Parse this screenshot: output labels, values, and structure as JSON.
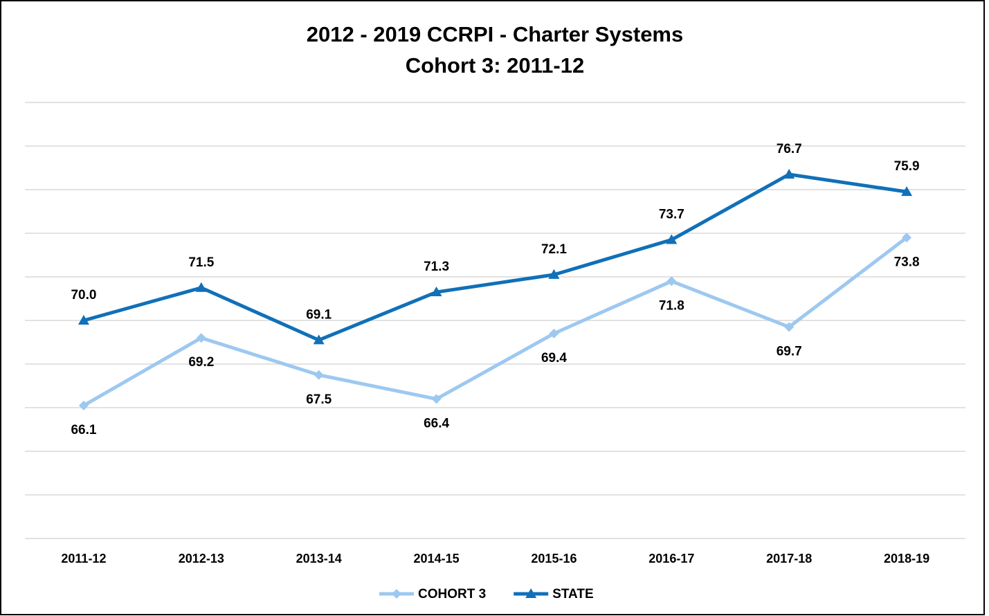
{
  "chart_data": {
    "type": "line",
    "title": "2012 - 2019 CCRPI - Charter Systems",
    "subtitle": "Cohort 3: 2011-12",
    "categories": [
      "2011-12",
      "2012-13",
      "2013-14",
      "2014-15",
      "2015-16",
      "2016-17",
      "2017-18",
      "2018-19"
    ],
    "series": [
      {
        "name": "COHORT 3",
        "color": "#9dc8f0",
        "marker": "diamond",
        "label_position": "below",
        "values": [
          66.1,
          69.2,
          67.5,
          66.4,
          69.4,
          71.8,
          69.7,
          73.8
        ]
      },
      {
        "name": "STATE",
        "color": "#1070b8",
        "marker": "triangle",
        "label_position": "above",
        "values": [
          70.0,
          71.5,
          69.1,
          71.3,
          72.1,
          73.7,
          76.7,
          75.9
        ],
        "value_labels": [
          "70.0",
          "71.5",
          "69.1",
          "71.3",
          "72.1",
          "73.7",
          "76.7",
          "75.9"
        ]
      }
    ],
    "ylim": [
      60,
      80
    ],
    "yticks": [
      60,
      62,
      64,
      66,
      68,
      70,
      72,
      74,
      76,
      78,
      80
    ],
    "grid": true,
    "legend": "bottom"
  }
}
